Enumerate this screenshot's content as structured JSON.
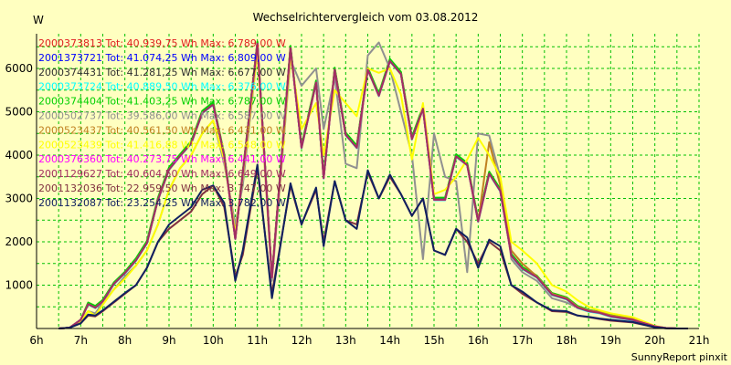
{
  "chart_data": {
    "type": "line",
    "title": "Wechselrichtervergleich vom 03.08.2012",
    "ylabel": "W",
    "xlabel": "",
    "credit": "SunnyReport pinxit",
    "x_ticks": [
      "6h",
      "7h",
      "8h",
      "9h",
      "10h",
      "11h",
      "12h",
      "13h",
      "14h",
      "15h",
      "16h",
      "17h",
      "18h",
      "19h",
      "20h",
      "21h"
    ],
    "y_ticks": [
      1000,
      2000,
      3000,
      4000,
      5000,
      6000
    ],
    "xlim": [
      6,
      21
    ],
    "ylim": [
      0,
      6800
    ],
    "grid": true,
    "legend_position": "top-left",
    "x": [
      6.5,
      6.75,
      7,
      7.17,
      7.33,
      7.5,
      7.75,
      8,
      8.25,
      8.5,
      8.75,
      9,
      9.25,
      9.5,
      9.75,
      10,
      10.25,
      10.5,
      10.67,
      11,
      11.33,
      11.75,
      12,
      12.33,
      12.5,
      12.75,
      13,
      13.25,
      13.5,
      13.75,
      14,
      14.25,
      14.5,
      14.75,
      15,
      15.25,
      15.5,
      15.75,
      16,
      16.25,
      16.5,
      16.75,
      17,
      17.33,
      17.67,
      18,
      18.25,
      18.5,
      18.75,
      19,
      19.5,
      20,
      20.25,
      20.5,
      20.75
    ],
    "series": [
      {
        "label": "2000373813 Tot: 40.939,75 Wh Max: 6.789,00 W",
        "color": "#e02020",
        "values": [
          0,
          20,
          200,
          580,
          500,
          650,
          1050,
          1300,
          1600,
          2000,
          3000,
          3700,
          4000,
          4300,
          5000,
          5200,
          4000,
          2100,
          3600,
          6600,
          1200,
          6500,
          4200,
          5700,
          3500,
          6000,
          4500,
          4200,
          6000,
          5400,
          6200,
          5900,
          4400,
          5100,
          3000,
          3000,
          4000,
          3800,
          2500,
          3600,
          3200,
          1700,
          1400,
          1200,
          800,
          700,
          500,
          420,
          380,
          300,
          220,
          50,
          10,
          0,
          0
        ]
      },
      {
        "label": "2001373721 Tot: 41.074,25 Wh Max: 6.809,00 W",
        "color": "#0000ff",
        "values": [
          0,
          20,
          200,
          570,
          490,
          640,
          1040,
          1290,
          1580,
          1980,
          2980,
          3680,
          3990,
          4280,
          4980,
          5180,
          3990,
          2080,
          3580,
          6580,
          1190,
          6480,
          4180,
          5680,
          3480,
          5980,
          4480,
          4180,
          5980,
          5380,
          6180,
          5880,
          4380,
          5080,
          2980,
          2980,
          3980,
          3780,
          2480,
          3580,
          3180,
          1690,
          1390,
          1190,
          790,
          690,
          490,
          410,
          370,
          290,
          210,
          50,
          10,
          0,
          0
        ]
      },
      {
        "label": "2000374431 Tot: 41.281,25 Wh Max: 6.677,00 W",
        "color": "#303030",
        "values": [
          0,
          20,
          200,
          560,
          480,
          630,
          1030,
          1280,
          1570,
          1970,
          2970,
          3670,
          3980,
          4270,
          4970,
          5170,
          3980,
          2070,
          3570,
          6570,
          1180,
          6470,
          4170,
          5670,
          3470,
          5970,
          4470,
          4170,
          5970,
          5370,
          6170,
          5870,
          4370,
          5070,
          2970,
          2970,
          3970,
          3770,
          2470,
          3570,
          3170,
          1680,
          1380,
          1180,
          780,
          680,
          480,
          400,
          360,
          280,
          200,
          50,
          10,
          0,
          0
        ]
      },
      {
        "label": "2000373724 Tot: 40.889,50 Wh Max: 6.376,00 W",
        "color": "#00ffff",
        "values": [
          0,
          20,
          200,
          550,
          470,
          620,
          1020,
          1270,
          1560,
          1960,
          2960,
          3660,
          3970,
          4260,
          4960,
          5160,
          3970,
          2060,
          3560,
          6560,
          1170,
          6460,
          4160,
          5660,
          3460,
          5960,
          4460,
          4160,
          5960,
          5360,
          6160,
          5860,
          4360,
          5060,
          2960,
          2960,
          3960,
          3760,
          2460,
          3560,
          3160,
          1670,
          1370,
          1170,
          770,
          670,
          470,
          390,
          350,
          270,
          190,
          50,
          10,
          0,
          0
        ]
      },
      {
        "label": "2000374404 Tot: 41.403,25 Wh Max: 6.787,00 W",
        "color": "#00d000",
        "values": [
          0,
          20,
          200,
          600,
          520,
          660,
          1060,
          1310,
          1620,
          2020,
          3020,
          3720,
          4020,
          4320,
          5020,
          5220,
          4020,
          2120,
          3620,
          6620,
          1220,
          6520,
          4220,
          5720,
          3520,
          6020,
          4520,
          4220,
          6020,
          5420,
          6220,
          5920,
          4420,
          5120,
          3020,
          3020,
          4020,
          3820,
          2520,
          3620,
          3220,
          1720,
          1420,
          1220,
          820,
          720,
          520,
          430,
          390,
          310,
          230,
          50,
          10,
          0,
          0
        ]
      },
      {
        "label": "2000502737 Tot: 39.586,00 Wh Max: 6.587,00 W",
        "color": "#909090",
        "values": [
          0,
          20,
          180,
          400,
          350,
          600,
          900,
          1200,
          1450,
          1800,
          2400,
          3200,
          3700,
          4000,
          4500,
          4800,
          3800,
          2400,
          3300,
          6400,
          1100,
          6200,
          5600,
          6000,
          4600,
          5800,
          3800,
          3700,
          6300,
          6600,
          6000,
          5000,
          4000,
          1600,
          4500,
          3500,
          3400,
          1300,
          4500,
          4450,
          3500,
          1600,
          1300,
          1100,
          700,
          600,
          480,
          420,
          380,
          300,
          220,
          50,
          10,
          0,
          0
        ]
      },
      {
        "label": "2000523437 Tot: 40.561,50 Wh Max: 6.431,00 W",
        "color": "#c08020",
        "values": [
          0,
          20,
          200,
          560,
          480,
          630,
          1030,
          1280,
          1570,
          1970,
          2970,
          3670,
          3980,
          4270,
          4970,
          5170,
          3980,
          2070,
          3570,
          6570,
          1180,
          6470,
          4170,
          5670,
          3470,
          5970,
          4470,
          4170,
          5970,
          5370,
          6170,
          5870,
          4370,
          5070,
          2970,
          2970,
          3970,
          3770,
          2470,
          4300,
          3300,
          1800,
          1500,
          1200,
          800,
          700,
          500,
          420,
          380,
          300,
          220,
          50,
          10,
          0,
          0
        ]
      },
      {
        "label": "2000523439 Tot: 41.416,88 Wh Max: 6.548,00 W",
        "color": "#ffff00",
        "values": [
          0,
          20,
          150,
          400,
          300,
          550,
          900,
          1150,
          1450,
          1800,
          2400,
          3200,
          3700,
          4000,
          4500,
          4800,
          3900,
          2200,
          3500,
          6400,
          1200,
          6300,
          4600,
          5200,
          4000,
          5500,
          5200,
          4900,
          6000,
          5900,
          6000,
          5400,
          3900,
          5200,
          3100,
          3200,
          3500,
          3900,
          4400,
          4000,
          3500,
          2000,
          1800,
          1500,
          1000,
          850,
          650,
          500,
          420,
          350,
          260,
          60,
          10,
          0,
          0
        ]
      },
      {
        "label": "2000376360 Tot: 40.273,75 Wh Max: 6.441,00 W",
        "color": "#ff00ff",
        "values": [
          0,
          20,
          200,
          560,
          480,
          630,
          1030,
          1280,
          1570,
          1970,
          2970,
          3670,
          3980,
          4270,
          4970,
          5170,
          3980,
          2070,
          3570,
          6570,
          1180,
          6470,
          4170,
          5670,
          3470,
          5970,
          4470,
          4170,
          5970,
          5370,
          6170,
          5870,
          4370,
          5070,
          2970,
          2970,
          3970,
          3770,
          2470,
          3570,
          3170,
          1680,
          1380,
          1180,
          780,
          680,
          480,
          400,
          360,
          280,
          200,
          50,
          10,
          0,
          0
        ]
      },
      {
        "label": "2001129627 Tot: 40.604,50 Wh Max: 6.649,00 W",
        "color": "#a03060",
        "values": [
          0,
          20,
          200,
          560,
          480,
          630,
          1030,
          1280,
          1570,
          1970,
          2970,
          3670,
          3980,
          4270,
          4970,
          5170,
          3980,
          2070,
          3570,
          6570,
          1180,
          6470,
          4170,
          5670,
          3470,
          5970,
          4470,
          4170,
          5970,
          5370,
          6170,
          5870,
          4370,
          5070,
          2970,
          2970,
          3970,
          3770,
          2470,
          3570,
          3170,
          1680,
          1380,
          1180,
          780,
          680,
          480,
          400,
          360,
          280,
          200,
          50,
          10,
          0,
          0
        ]
      },
      {
        "label": "2001132036 Tot: 22.959,50 Wh Max: 3.747,00 W",
        "color": "#803040",
        "values": [
          0,
          20,
          120,
          300,
          280,
          400,
          600,
          800,
          1000,
          1400,
          2000,
          2300,
          2500,
          2700,
          3100,
          3300,
          2800,
          1200,
          1700,
          3700,
          800,
          3300,
          2400,
          3200,
          2000,
          3400,
          2500,
          2400,
          3600,
          3000,
          3500,
          3100,
          2600,
          3000,
          1800,
          1700,
          2300,
          2000,
          1500,
          2000,
          1800,
          1000,
          800,
          600,
          400,
          380,
          300,
          260,
          220,
          180,
          140,
          30,
          5,
          0,
          0
        ]
      },
      {
        "label": "2001132087 Tot: 23.254,25 Wh Max: 3.782,00 W",
        "color": "#102060",
        "values": [
          0,
          20,
          120,
          320,
          300,
          420,
          620,
          820,
          1000,
          1400,
          2000,
          2400,
          2600,
          2800,
          3200,
          3300,
          2900,
          1100,
          1800,
          3780,
          700,
          3350,
          2400,
          3250,
          1900,
          3400,
          2500,
          2300,
          3650,
          3000,
          3550,
          3100,
          2600,
          3000,
          1800,
          1700,
          2300,
          2100,
          1400,
          2050,
          1900,
          1000,
          850,
          600,
          420,
          400,
          300,
          270,
          230,
          200,
          150,
          30,
          5,
          0,
          0
        ]
      }
    ]
  }
}
